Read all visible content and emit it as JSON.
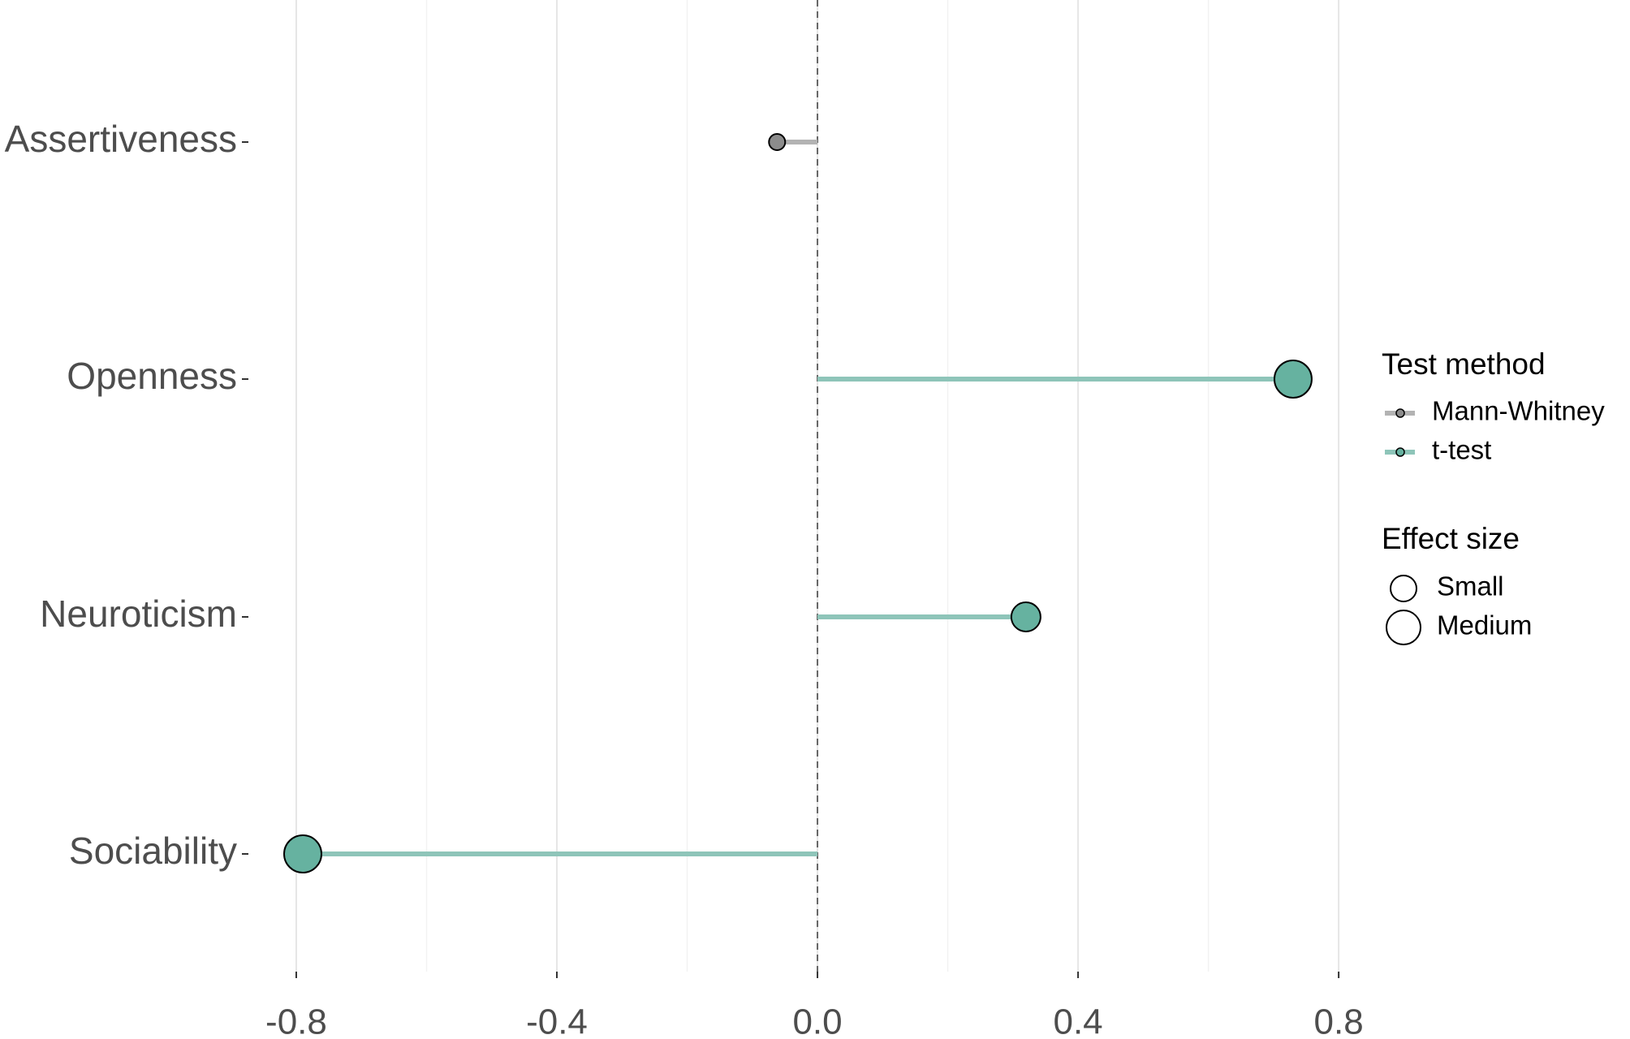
{
  "chart_data": {
    "type": "lollipop",
    "categories": [
      "Assertiveness",
      "Openness",
      "Neuroticism",
      "Sociability"
    ],
    "values": [
      -0.062,
      0.73,
      0.32,
      -0.79
    ],
    "methods": [
      "Mann-Whitney",
      "t-test",
      "t-test",
      "t-test"
    ],
    "effect_sizes": [
      null,
      "Medium",
      "Small",
      "Medium"
    ],
    "xlim": [
      -0.866,
      0.836
    ],
    "xticks": [
      -0.8,
      -0.4,
      {
        "value": 0,
        "label": "0.0"
      },
      0.4,
      0.8
    ],
    "reference_line": 0,
    "grid": true,
    "legend": {
      "method": {
        "title": "Test method",
        "items": [
          {
            "name": "Mann-Whitney",
            "line_color": "#b3b3b3",
            "point_color": "#8c8c8c"
          },
          {
            "name": "t-test",
            "line_color": "#8ec5b9",
            "point_color": "#66b2a0"
          }
        ]
      },
      "size": {
        "title": "Effect size",
        "items": [
          "Small",
          "Medium"
        ]
      }
    }
  }
}
